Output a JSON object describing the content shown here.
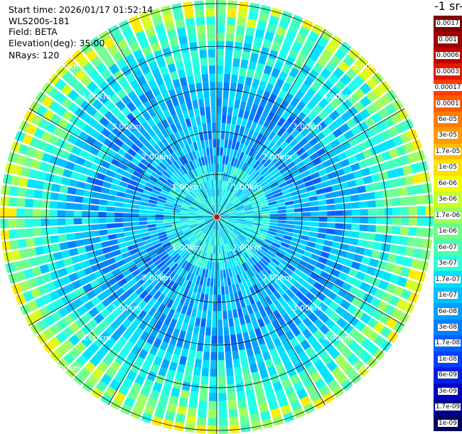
{
  "header": {
    "start_time": "Start time: 2026/01/17 01:52:14",
    "instrument": "WLS200s-181",
    "field": "Field: BETA",
    "elevation": "Elevation(deg): 35.00",
    "nrays": "NRays: 120"
  },
  "legend": {
    "unit_title": "-1 sr-",
    "labels": [
      "0.0017",
      "0.001",
      "0.0006",
      "0.0003",
      "0.00017",
      "0.0001",
      "6e-05",
      "3e-05",
      "1.7e-05",
      "1e-05",
      "6e-06",
      "3e-06",
      "1.7e-06",
      "1e-06",
      "6e-07",
      "3e-07",
      "1.7e-07",
      "1e-07",
      "6e-08",
      "3e-08",
      "1.7e-08",
      "1e-08",
      "6e-09",
      "3e-09",
      "1.7e-09",
      "1e-09"
    ],
    "colors": [
      "#7f0000",
      "#a00000",
      "#c40000",
      "#e01a00",
      "#ff3a00",
      "#ff5a00",
      "#ff7d00",
      "#ff9a00",
      "#ffbf00",
      "#ffe000",
      "#f2ff00",
      "#c8ff2d",
      "#9dff5a",
      "#6dff8a",
      "#4dffb0",
      "#2dffd9",
      "#00e0ff",
      "#00c0ff",
      "#00a0ff",
      "#0080ff",
      "#0060ff",
      "#0040ff",
      "#0020e0",
      "#0000c0",
      "#00008f",
      "#000060"
    ]
  },
  "range_rings": {
    "labels": [
      "1.00km",
      "2.00km",
      "3.00km",
      "4.00km",
      "5.00km"
    ]
  }
}
